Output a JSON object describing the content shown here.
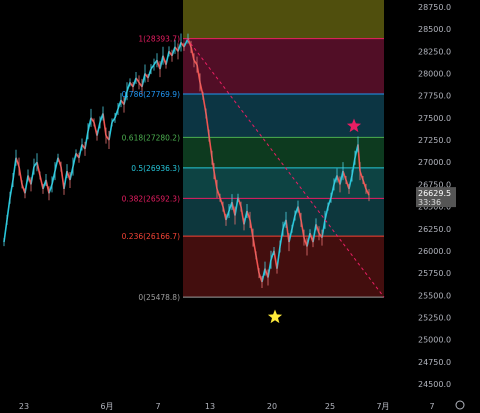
{
  "chart_data": {
    "type": "candlestick",
    "title": "",
    "ylim": [
      24350,
      28750
    ],
    "y_ticks": [
      28750,
      28500,
      28250,
      28000,
      27750,
      27500,
      27250,
      27000,
      26750,
      26500,
      26250,
      26000,
      25750,
      25500,
      25250,
      25000,
      24750,
      24500
    ],
    "y_tick_labels": [
      "28750.0",
      "28500.0",
      "28250.0",
      "28000.0",
      "27750.0",
      "27500.0",
      "27250.0",
      "27000.0",
      "26750.0",
      "26500.0",
      "26250.0",
      "26000.0",
      "25750.0",
      "25500.0",
      "25250.0",
      "25000.0",
      "24750.0",
      "24500.0"
    ],
    "x_tick_labels": [
      "23",
      "6月",
      "7",
      "13",
      "20",
      "25",
      "7月",
      "7"
    ],
    "fib_levels": [
      {
        "ratio": "1",
        "value": 28393.7,
        "label": "1(28393.7)",
        "color": "#e91e63"
      },
      {
        "ratio": "0.786",
        "value": 27769.9,
        "label": "0.786(27769.9)",
        "color": "#2196f3"
      },
      {
        "ratio": "0.618",
        "value": 27280.2,
        "label": "0.618(27280.2)",
        "color": "#4caf50"
      },
      {
        "ratio": "0.5",
        "value": 26936.3,
        "label": "0.5(26936.3)",
        "color": "#26c6da"
      },
      {
        "ratio": "0.382",
        "value": 26592.3,
        "label": "0.382(26592.3)",
        "color": "#e91e63"
      },
      {
        "ratio": "0.236",
        "value": 26166.7,
        "label": "0.236(26166.7)",
        "color": "#f44336"
      },
      {
        "ratio": "0",
        "value": 25478.8,
        "label": "0(25478.8)",
        "color": "#9e9e9e"
      }
    ],
    "last_price": {
      "label": "26629.5",
      "countdown": "33:36",
      "value": 26629.5,
      "color": "#555555"
    },
    "price_series": [
      [
        0,
        26100
      ],
      [
        3,
        26350
      ],
      [
        6,
        26600
      ],
      [
        9,
        26800
      ],
      [
        12,
        27050
      ],
      [
        15,
        26950
      ],
      [
        18,
        26750
      ],
      [
        21,
        26650
      ],
      [
        24,
        26850
      ],
      [
        27,
        26750
      ],
      [
        30,
        26950
      ],
      [
        33,
        27000
      ],
      [
        36,
        26850
      ],
      [
        39,
        26700
      ],
      [
        42,
        26800
      ],
      [
        45,
        26650
      ],
      [
        48,
        26750
      ],
      [
        51,
        26900
      ],
      [
        54,
        27050
      ],
      [
        57,
        26950
      ],
      [
        60,
        26700
      ],
      [
        63,
        26900
      ],
      [
        66,
        26800
      ],
      [
        69,
        26950
      ],
      [
        72,
        27100
      ],
      [
        75,
        27050
      ],
      [
        78,
        27200
      ],
      [
        81,
        27150
      ],
      [
        84,
        27350
      ],
      [
        87,
        27500
      ],
      [
        90,
        27450
      ],
      [
        93,
        27300
      ],
      [
        96,
        27450
      ],
      [
        99,
        27550
      ],
      [
        102,
        27300
      ],
      [
        105,
        27250
      ],
      [
        108,
        27450
      ],
      [
        111,
        27500
      ],
      [
        114,
        27600
      ],
      [
        117,
        27700
      ],
      [
        120,
        27650
      ],
      [
        123,
        27800
      ],
      [
        126,
        27900
      ],
      [
        129,
        27850
      ],
      [
        132,
        27950
      ],
      [
        135,
        27900
      ],
      [
        138,
        27850
      ],
      [
        141,
        28000
      ],
      [
        144,
        27950
      ],
      [
        147,
        28050
      ],
      [
        150,
        28100
      ],
      [
        153,
        28150
      ],
      [
        156,
        28050
      ],
      [
        159,
        28200
      ],
      [
        162,
        28100
      ],
      [
        165,
        28250
      ],
      [
        168,
        28200
      ],
      [
        171,
        28300
      ],
      [
        174,
        28250
      ],
      [
        177,
        28350
      ],
      [
        180,
        28300
      ],
      [
        184,
        28394
      ],
      [
        187,
        28300
      ],
      [
        190,
        28150
      ],
      [
        193,
        28100
      ],
      [
        196,
        27900
      ],
      [
        199,
        27750
      ],
      [
        202,
        27550
      ],
      [
        205,
        27300
      ],
      [
        208,
        27050
      ],
      [
        210,
        26900
      ],
      [
        213,
        26700
      ],
      [
        216,
        26600
      ],
      [
        219,
        26500
      ],
      [
        222,
        26350
      ],
      [
        225,
        26450
      ],
      [
        228,
        26550
      ],
      [
        231,
        26400
      ],
      [
        234,
        26600
      ],
      [
        237,
        26500
      ],
      [
        240,
        26300
      ],
      [
        243,
        26450
      ],
      [
        246,
        26350
      ],
      [
        249,
        26150
      ],
      [
        252,
        25950
      ],
      [
        255,
        25750
      ],
      [
        258,
        25650
      ],
      [
        261,
        25800
      ],
      [
        264,
        25700
      ],
      [
        267,
        25900
      ],
      [
        270,
        26000
      ],
      [
        273,
        25800
      ],
      [
        276,
        26050
      ],
      [
        279,
        26250
      ],
      [
        282,
        26350
      ],
      [
        285,
        26100
      ],
      [
        288,
        26250
      ],
      [
        291,
        26400
      ],
      [
        294,
        26500
      ],
      [
        297,
        26350
      ],
      [
        300,
        26150
      ],
      [
        303,
        26050
      ],
      [
        306,
        26200
      ],
      [
        309,
        26100
      ],
      [
        312,
        26300
      ],
      [
        315,
        26200
      ],
      [
        318,
        26150
      ],
      [
        321,
        26350
      ],
      [
        324,
        26500
      ],
      [
        327,
        26600
      ],
      [
        330,
        26750
      ],
      [
        333,
        26850
      ],
      [
        336,
        26750
      ],
      [
        339,
        26900
      ],
      [
        342,
        26800
      ],
      [
        345,
        26700
      ],
      [
        348,
        26850
      ],
      [
        351,
        27050
      ],
      [
        354,
        27200
      ],
      [
        356,
        26900
      ],
      [
        359,
        26800
      ],
      [
        362,
        26700
      ],
      [
        365,
        26629.5
      ]
    ]
  }
}
